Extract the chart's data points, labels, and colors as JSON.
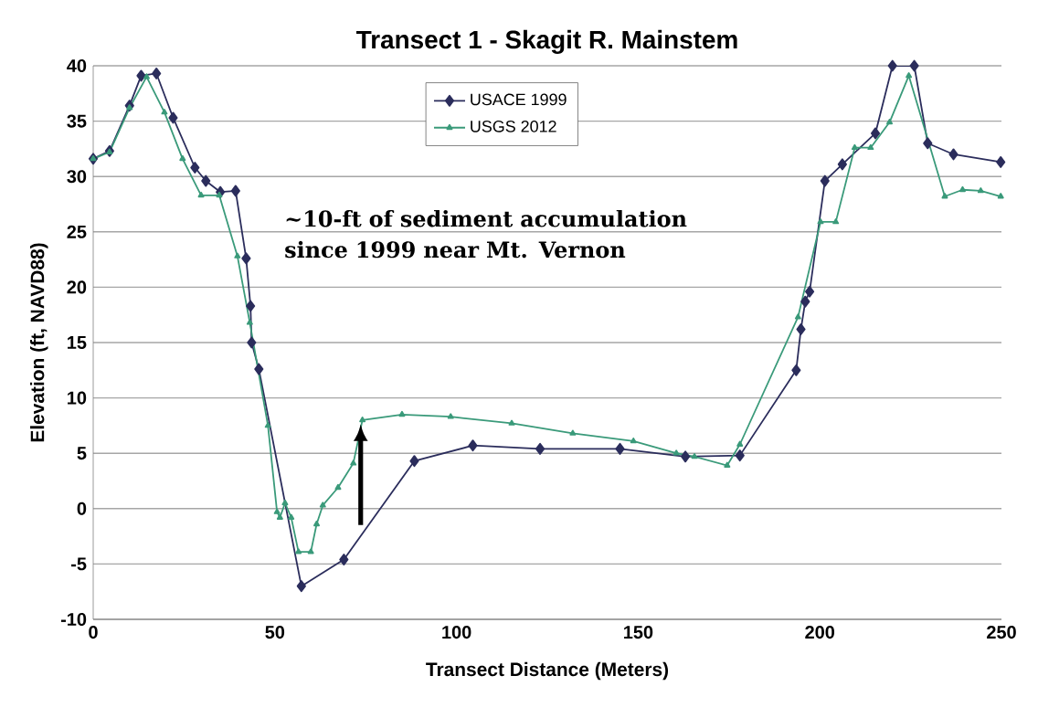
{
  "chart_data": {
    "type": "line",
    "title": "Transect 1 - Skagit R. Mainstem",
    "xlabel": "Transect Distance (Meters)",
    "ylabel": "Elevation (ft, NAVD88)",
    "xlim": [
      0,
      250
    ],
    "ylim": [
      -10,
      40
    ],
    "xticks": [
      0,
      50,
      100,
      150,
      200,
      250
    ],
    "yticks": [
      -10,
      -5,
      0,
      5,
      10,
      15,
      20,
      25,
      30,
      35,
      40
    ],
    "grid": "y",
    "legend": "top",
    "annotations": [
      "~10-ft of sediment accumulation since 1999 near Mt. Vernon"
    ],
    "series": [
      {
        "name": "USACE 1999",
        "color": "#2b2d5c",
        "marker": "diamond",
        "x": [
          0,
          4.5,
          10,
          13.2,
          17.4,
          22,
          28,
          31,
          35,
          39.2,
          42.1,
          43.3,
          43.6,
          45.6,
          57.3,
          69,
          88.4,
          104.5,
          123,
          145,
          163,
          178,
          193.5,
          194.8,
          196,
          197.2,
          201.4,
          206.2,
          215.3,
          220,
          226,
          229.7,
          236.8,
          249.8
        ],
        "values": [
          31.6,
          32.3,
          36.4,
          39.1,
          39.3,
          35.3,
          30.8,
          29.6,
          28.6,
          28.7,
          22.6,
          18.3,
          15.0,
          12.6,
          -7.0,
          -4.6,
          4.3,
          5.7,
          5.4,
          5.4,
          4.7,
          4.8,
          12.5,
          16.2,
          18.7,
          19.6,
          29.6,
          31.1,
          33.9,
          40,
          40,
          33.0,
          32.0,
          31.3
        ]
      },
      {
        "name": "USGS 2012",
        "color": "#3a9a7a",
        "marker": "triangle",
        "x": [
          0,
          4.5,
          10,
          14.7,
          19.6,
          24.6,
          29.7,
          34.7,
          39.7,
          43.1,
          48.1,
          50.6,
          51.4,
          52.8,
          54.5,
          56.5,
          59.9,
          61.5,
          63.2,
          67.4,
          71.6,
          74.1,
          85,
          98.4,
          115.2,
          132,
          148.7,
          160.5,
          165.5,
          174.5,
          178,
          194,
          200.2,
          204.4,
          209.6,
          214,
          219.2,
          224.5,
          234.4,
          239.3,
          244.3,
          249.8
        ],
        "values": [
          31.6,
          32.2,
          36.2,
          39.0,
          35.8,
          31.6,
          28.3,
          28.3,
          22.8,
          16.8,
          7.5,
          -0.3,
          -0.8,
          0.5,
          -0.8,
          -3.9,
          -3.9,
          -1.4,
          0.3,
          1.9,
          4.1,
          8.0,
          8.5,
          8.3,
          7.7,
          6.8,
          6.1,
          5.0,
          4.7,
          3.9,
          5.8,
          17.3,
          25.9,
          25.9,
          32.6,
          32.6,
          34.9,
          39.1,
          28.2,
          28.8,
          28.7,
          28.2
        ]
      }
    ]
  }
}
